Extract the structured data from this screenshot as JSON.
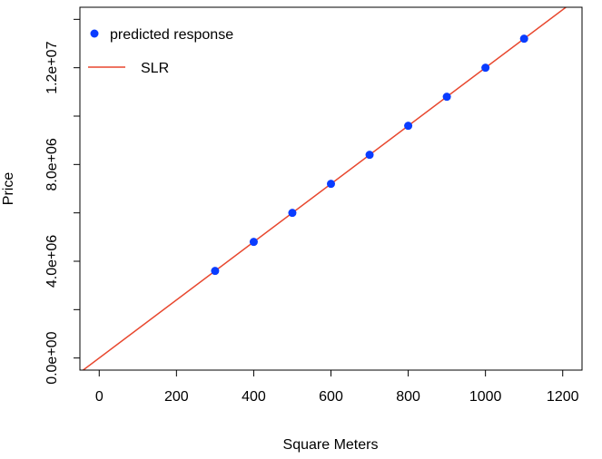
{
  "chart_data": {
    "type": "scatter",
    "title": "",
    "xlabel": "Square Meters",
    "ylabel": "Price",
    "xlim": [
      -50,
      1250
    ],
    "ylim": [
      -500000,
      14500000
    ],
    "x_ticks": [
      0,
      200,
      400,
      600,
      800,
      1000,
      1200
    ],
    "x_tick_labels": [
      "0",
      "200",
      "400",
      "600",
      "800",
      "1000",
      "1200"
    ],
    "y_ticks": [
      0,
      4000000,
      8000000,
      12000000
    ],
    "y_tick_labels": [
      "0.0e+00",
      "4.0e+06",
      "8.0e+06",
      "1.2e+07"
    ],
    "y_minor_ticks": [
      2000000,
      6000000,
      10000000,
      14000000
    ],
    "series": [
      {
        "name": "predicted response",
        "kind": "points",
        "color": "#0a3cff",
        "x": [
          300,
          400,
          500,
          600,
          700,
          800,
          900,
          1000,
          1100
        ],
        "y": [
          3600000,
          4800000,
          6000000,
          7200000,
          8400000,
          9600000,
          10800000,
          12000000,
          13200000
        ]
      },
      {
        "name": "SLR",
        "kind": "line",
        "color": "#e8472e",
        "slope": 12000,
        "intercept": 0
      }
    ],
    "legend": {
      "position": "top-left",
      "boxed": true
    },
    "grid": false
  }
}
